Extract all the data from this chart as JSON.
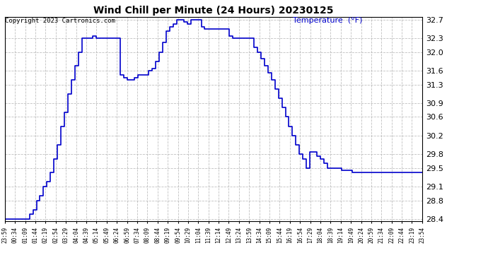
{
  "title": "Wind Chill per Minute (24 Hours) 20230125",
  "ylabel": "Temperature  (°F)",
  "copyright": "Copyright 2023 Cartronics.com",
  "line_color": "#0000cc",
  "bg_color": "#ffffff",
  "grid_color": "#b0b0b0",
  "ylim": [
    28.35,
    32.75
  ],
  "yticks": [
    28.4,
    28.8,
    29.1,
    29.5,
    29.8,
    30.2,
    30.6,
    30.9,
    31.3,
    31.6,
    32.0,
    32.3,
    32.7
  ],
  "xtick_labels": [
    "23:59",
    "00:34",
    "01:09",
    "01:44",
    "02:19",
    "02:54",
    "03:29",
    "04:04",
    "04:39",
    "05:14",
    "05:49",
    "06:24",
    "06:59",
    "07:34",
    "08:09",
    "08:44",
    "09:19",
    "09:54",
    "10:29",
    "11:04",
    "11:39",
    "12:14",
    "12:49",
    "13:24",
    "13:59",
    "14:34",
    "15:09",
    "15:44",
    "16:19",
    "16:54",
    "17:29",
    "18:04",
    "18:39",
    "19:14",
    "19:49",
    "20:24",
    "20:59",
    "21:34",
    "22:09",
    "22:44",
    "23:19",
    "23:54"
  ],
  "data_y": [
    28.4,
    28.4,
    28.4,
    28.4,
    28.4,
    28.4,
    28.4,
    28.5,
    28.6,
    28.8,
    28.9,
    29.1,
    29.2,
    29.4,
    29.7,
    30.0,
    30.4,
    30.7,
    31.1,
    31.4,
    31.7,
    32.0,
    32.3,
    32.3,
    32.3,
    32.35,
    32.3,
    32.3,
    32.3,
    32.3,
    32.3,
    32.3,
    32.3,
    31.5,
    31.45,
    31.4,
    31.4,
    31.45,
    31.5,
    31.5,
    31.5,
    31.6,
    31.65,
    31.8,
    32.0,
    32.2,
    32.45,
    32.55,
    32.6,
    32.7,
    32.7,
    32.65,
    32.6,
    32.7,
    32.7,
    32.7,
    32.55,
    32.5,
    32.5,
    32.5,
    32.5,
    32.5,
    32.5,
    32.5,
    32.35,
    32.3,
    32.3,
    32.3,
    32.3,
    32.3,
    32.3,
    32.1,
    32.0,
    31.85,
    31.7,
    31.55,
    31.4,
    31.2,
    31.0,
    30.8,
    30.6,
    30.4,
    30.2,
    30.0,
    29.8,
    29.7,
    29.5,
    29.85,
    29.85,
    29.75,
    29.7,
    29.6,
    29.5,
    29.5,
    29.5,
    29.5,
    29.45,
    29.45,
    29.45,
    29.4,
    29.4,
    29.4,
    29.4,
    29.4,
    29.4,
    29.4,
    29.4,
    29.4,
    29.4,
    29.4,
    29.4,
    29.4,
    29.4,
    29.4,
    29.4,
    29.4,
    29.4,
    29.4,
    29.4,
    29.4
  ]
}
